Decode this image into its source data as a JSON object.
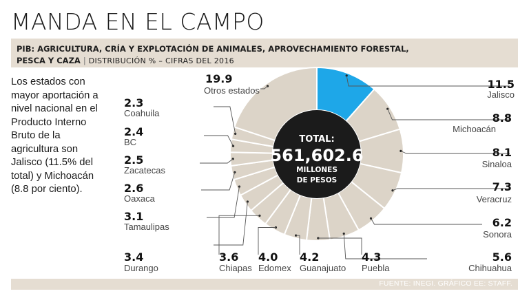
{
  "header": {
    "title": "MANDA EN EL CAMPO",
    "subtitle_line1": "PIB: AGRICULTURA, CRÍA Y EXPLOTACIÓN DE ANIMALES, APROVECHAMIENTO FORESTAL,",
    "subtitle_line2": "PESCA Y CAZA",
    "subtitle_note": "DISTRIBUCIÓN % – CIFRAS DEL 2016"
  },
  "sidebar": {
    "text": "Los estados con mayor aportación a nivel nacional en el Producto Interno Bruto de la agricultura son Jalisco (11.5% del total) y Michoacán (8.8 por ciento)."
  },
  "center": {
    "label": "TOTAL:",
    "value": "561,602.6",
    "unit1": "MILLONES",
    "unit2": "DE PESOS"
  },
  "colors": {
    "highlight": "#1ea7e8",
    "segment": "#dcd4c8",
    "segment_border": "#ffffff",
    "center": "#1b1b1b",
    "bands": "#e5ddd2"
  },
  "chart_data": {
    "type": "pie",
    "style": "donut",
    "title": "PIB: agricultura, cría y explotación de animales, aprovechamiento forestal, pesca y caza",
    "unit": "Distribución %",
    "year": 2016,
    "highlight": "Jalisco",
    "order": "clockwise from top",
    "slices": [
      {
        "label": "Jalisco",
        "value": 11.5,
        "value_text": "11.5"
      },
      {
        "label": "Michoacán",
        "value": 8.8,
        "value_text": "8.8"
      },
      {
        "label": "Sinaloa",
        "value": 8.1,
        "value_text": "8.1"
      },
      {
        "label": "Veracruz",
        "value": 7.3,
        "value_text": "7.3"
      },
      {
        "label": "Sonora",
        "value": 6.2,
        "value_text": "6.2"
      },
      {
        "label": "Chihuahua",
        "value": 5.6,
        "value_text": "5.6"
      },
      {
        "label": "Puebla",
        "value": 4.3,
        "value_text": "4.3"
      },
      {
        "label": "Guanajuato",
        "value": 4.2,
        "value_text": "4.2"
      },
      {
        "label": "Edomex",
        "value": 4.0,
        "value_text": "4.0"
      },
      {
        "label": "Chiapas",
        "value": 3.6,
        "value_text": "3.6"
      },
      {
        "label": "Durango",
        "value": 3.4,
        "value_text": "3.4"
      },
      {
        "label": "Tamaulipas",
        "value": 3.1,
        "value_text": "3.1"
      },
      {
        "label": "Oaxaca",
        "value": 2.6,
        "value_text": "2.6"
      },
      {
        "label": "Zacatecas",
        "value": 2.5,
        "value_text": "2.5"
      },
      {
        "label": "BC",
        "value": 2.4,
        "value_text": "2.4"
      },
      {
        "label": "Coahuila",
        "value": 2.3,
        "value_text": "2.3"
      },
      {
        "label": "Otros estados",
        "value": 19.9,
        "value_text": "19.9"
      }
    ]
  },
  "footer": {
    "source": "FUENTE: INEGI. GRÁFICO EE: STAFF."
  }
}
